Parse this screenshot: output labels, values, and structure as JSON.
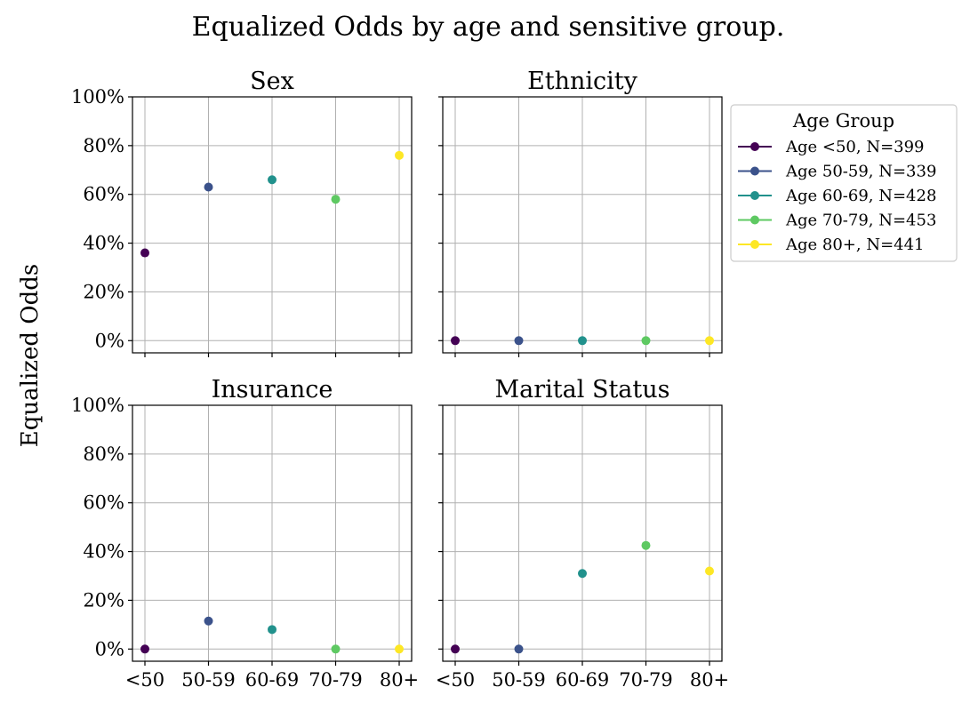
{
  "chart_data": {
    "type": "scatter",
    "title": "Equalized Odds by age and sensitive group.",
    "ylabel": "Equalized Odds",
    "categories": [
      "<50",
      "50-59",
      "60-69",
      "70-79",
      "80+"
    ],
    "ylim": [
      -0.05,
      1.0
    ],
    "yticks": [
      0,
      0.2,
      0.4,
      0.6,
      0.8,
      1.0
    ],
    "ytick_labels": [
      "0%",
      "20%",
      "40%",
      "60%",
      "80%",
      "100%"
    ],
    "grid": true,
    "legend": {
      "title": "Age Group",
      "placement": "top-right outside",
      "entries": [
        "Age <50, N=399",
        "Age 50-59, N=339",
        "Age 60-69, N=428",
        "Age 70-79, N=453",
        "Age 80+, N=441"
      ]
    },
    "colors": [
      "#440154",
      "#3b528b",
      "#21918c",
      "#5ec962",
      "#fde725"
    ],
    "panels": [
      {
        "title": "Sex",
        "values": [
          0.36,
          0.63,
          0.66,
          0.58,
          0.76
        ]
      },
      {
        "title": "Ethnicity",
        "values": [
          0.0,
          0.0,
          0.0,
          0.0,
          0.0
        ]
      },
      {
        "title": "Insurance",
        "values": [
          0.0,
          0.115,
          0.08,
          0.0,
          0.0
        ]
      },
      {
        "title": "Marital Status",
        "values": [
          0.0,
          0.0,
          0.31,
          0.425,
          0.32
        ]
      }
    ]
  }
}
